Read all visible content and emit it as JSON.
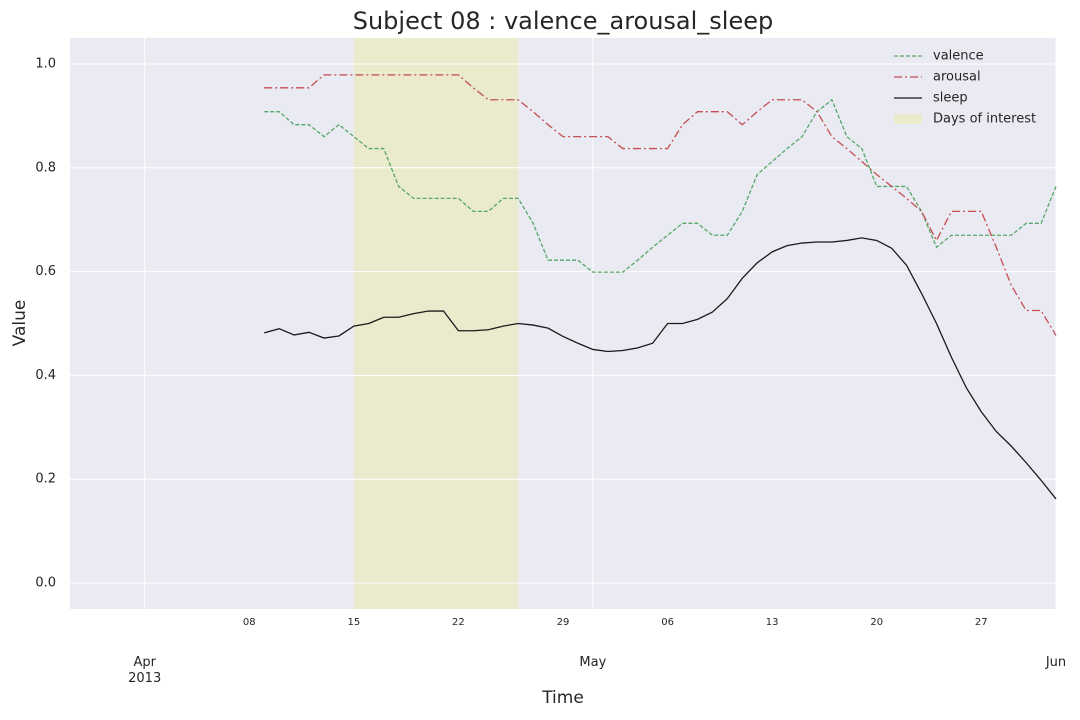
{
  "chart_data": {
    "type": "line",
    "title": "Subject 08 : valence_arousal_sleep",
    "xlabel": "Time",
    "ylabel": "Value",
    "x": [
      "2013-04-09",
      "2013-04-10",
      "2013-04-11",
      "2013-04-12",
      "2013-04-13",
      "2013-04-14",
      "2013-04-15",
      "2013-04-16",
      "2013-04-17",
      "2013-04-18",
      "2013-04-19",
      "2013-04-20",
      "2013-04-21",
      "2013-04-22",
      "2013-04-23",
      "2013-04-24",
      "2013-04-25",
      "2013-04-26",
      "2013-04-27",
      "2013-04-28",
      "2013-04-29",
      "2013-04-30",
      "2013-05-01",
      "2013-05-02",
      "2013-05-03",
      "2013-05-04",
      "2013-05-05",
      "2013-05-06",
      "2013-05-07",
      "2013-05-08",
      "2013-05-09",
      "2013-05-10",
      "2013-05-11",
      "2013-05-12",
      "2013-05-13",
      "2013-05-14",
      "2013-05-15",
      "2013-05-16",
      "2013-05-17",
      "2013-05-18",
      "2013-05-19",
      "2013-05-20",
      "2013-05-21",
      "2013-05-22",
      "2013-05-23",
      "2013-05-24",
      "2013-05-25",
      "2013-05-26",
      "2013-05-27",
      "2013-05-28",
      "2013-05-29",
      "2013-05-30",
      "2013-05-31",
      "2013-06-01"
    ],
    "series": [
      {
        "name": "valence",
        "color": "#55a868",
        "linestyle": "dashed",
        "values": [
          0.908,
          0.908,
          0.883,
          0.883,
          0.86,
          0.883,
          0.86,
          0.837,
          0.837,
          0.764,
          0.741,
          0.741,
          0.741,
          0.741,
          0.716,
          0.716,
          0.741,
          0.741,
          0.693,
          0.622,
          0.622,
          0.622,
          0.599,
          0.599,
          0.599,
          0.622,
          0.647,
          0.67,
          0.693,
          0.693,
          0.67,
          0.67,
          0.716,
          0.787,
          0.812,
          0.837,
          0.86,
          0.908,
          0.931,
          0.86,
          0.837,
          0.764,
          0.764,
          0.764,
          0.716,
          0.647,
          0.67,
          0.67,
          0.67,
          0.67,
          0.67,
          0.693,
          0.693,
          0.764
        ]
      },
      {
        "name": "arousal",
        "color": "#c44e52",
        "linestyle": "dashdot",
        "values": [
          0.954,
          0.954,
          0.954,
          0.954,
          0.979,
          0.979,
          0.979,
          0.979,
          0.979,
          0.979,
          0.979,
          0.979,
          0.979,
          0.979,
          0.954,
          0.931,
          0.931,
          0.931,
          0.908,
          0.883,
          0.86,
          0.86,
          0.86,
          0.86,
          0.837,
          0.837,
          0.837,
          0.837,
          0.883,
          0.908,
          0.908,
          0.908,
          0.883,
          0.908,
          0.931,
          0.931,
          0.931,
          0.908,
          0.86,
          0.837,
          0.812,
          0.787,
          0.764,
          0.741,
          0.716,
          0.66,
          0.716,
          0.716,
          0.716,
          0.647,
          0.574,
          0.525,
          0.525,
          0.477
        ]
      },
      {
        "name": "sleep",
        "color": "#1a1a1a",
        "linestyle": "solid",
        "values": [
          0.482,
          0.49,
          0.478,
          0.483,
          0.472,
          0.476,
          0.495,
          0.5,
          0.512,
          0.512,
          0.519,
          0.524,
          0.524,
          0.486,
          0.486,
          0.488,
          0.495,
          0.5,
          0.497,
          0.491,
          0.475,
          0.462,
          0.45,
          0.446,
          0.448,
          0.453,
          0.462,
          0.5,
          0.5,
          0.508,
          0.522,
          0.548,
          0.587,
          0.617,
          0.638,
          0.65,
          0.655,
          0.657,
          0.657,
          0.66,
          0.665,
          0.66,
          0.645,
          0.612,
          0.558,
          0.5,
          0.435,
          0.376,
          0.33,
          0.292,
          0.264,
          0.232,
          0.198,
          0.162
        ]
      }
    ],
    "highlight": {
      "name": "Days of interest",
      "start": "2013-04-15",
      "end": "2013-04-26",
      "color": "#eaeacc"
    },
    "xlim": [
      "2013-03-27",
      "2013-06-01"
    ],
    "xticks": [
      {
        "value": "2013-04-01",
        "label": "Apr\n2013"
      },
      {
        "value": "2013-05-01",
        "label": "May"
      },
      {
        "value": "2013-06-01",
        "label": "Jun"
      }
    ],
    "xminorticks": [
      {
        "value": "2013-04-08",
        "label": "08"
      },
      {
        "value": "2013-04-15",
        "label": "15"
      },
      {
        "value": "2013-04-22",
        "label": "22"
      },
      {
        "value": "2013-04-29",
        "label": "29"
      },
      {
        "value": "2013-05-06",
        "label": "06"
      },
      {
        "value": "2013-05-13",
        "label": "13"
      },
      {
        "value": "2013-05-20",
        "label": "20"
      },
      {
        "value": "2013-05-27",
        "label": "27"
      }
    ],
    "ylim": [
      -0.05,
      1.05
    ],
    "yticks": [
      {
        "value": 0,
        "label": "0.0"
      },
      0.2,
      0.4,
      0.6,
      0.8,
      {
        "value": 1,
        "label": "1.0"
      }
    ],
    "grid": true,
    "legend": "upper right"
  }
}
